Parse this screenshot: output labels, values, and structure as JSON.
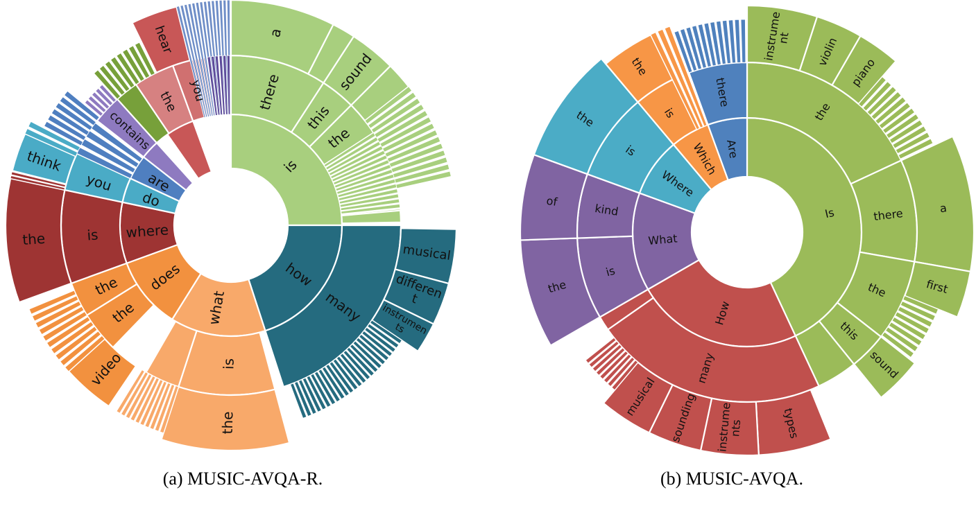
{
  "chart_data": [
    {
      "type": "sunburst",
      "caption": "(a) MUSIC-AVQA-R.",
      "first_words": [
        {
          "word": "is",
          "color": "#A8CF7E",
          "start": 0,
          "end": 90,
          "children": [
            {
              "word": "there",
              "start": 0,
              "end": 33,
              "children": [
                {
                  "word": "a",
                  "start": 0,
                  "end": 27
                }
              ]
            },
            {
              "word": "this",
              "start": 33,
              "end": 45,
              "children": [
                {
                  "word": "sound",
                  "start": 33,
                  "end": 45
                }
              ]
            },
            {
              "word": "the",
              "start": 45,
              "end": 57,
              "children": []
            }
          ]
        },
        {
          "word": "how",
          "color": "#256B7F",
          "start": 90,
          "end": 162,
          "children": [
            {
              "word": "many",
              "start": 90,
              "end": 162,
              "children": [
                {
                  "word": "musical",
                  "start": 93,
                  "end": 105
                },
                {
                  "word": "different",
                  "start": 105,
                  "end": 116
                },
                {
                  "word": "instruments",
                  "start": 116,
                  "end": 124
                }
              ]
            }
          ]
        },
        {
          "word": "what",
          "color": "#F8A96A",
          "start": 162,
          "end": 212,
          "children": [
            {
              "word": "is",
              "start": 165,
              "end": 198,
              "children": [
                {
                  "word": "the",
                  "start": 165,
                  "end": 198
                }
              ]
            }
          ]
        },
        {
          "word": "does",
          "color": "#F2913F",
          "start": 212,
          "end": 250,
          "children": [
            {
              "word": "the",
              "start": 224,
              "end": 238,
              "children": [
                {
                  "word": "video",
                  "start": 214,
                  "end": 228
                }
              ]
            },
            {
              "word": "the",
              "start": 238,
              "end": 250,
              "children": []
            }
          ]
        },
        {
          "word": "where",
          "color": "#9E3433",
          "start": 250,
          "end": 282,
          "children": [
            {
              "word": "is",
              "start": 250,
              "end": 282,
              "children": [
                {
                  "word": "the",
                  "start": 250,
                  "end": 282
                }
              ]
            }
          ]
        },
        {
          "word": "do",
          "color": "#4AABC6",
          "start": 282,
          "end": 295,
          "children": [
            {
              "word": "you",
              "start": 282,
              "end": 295,
              "children": [
                {
                  "word": "think",
                  "start": 283,
                  "end": 295
                }
              ]
            }
          ]
        },
        {
          "word": "are",
          "color": "#4F7FC0",
          "start": 295,
          "end": 308,
          "children": []
        },
        {
          "word": "contains",
          "color": "#8E7AC0",
          "start": 308,
          "end": 318,
          "children": []
        },
        {
          "word": "you",
          "color": "#C85757",
          "start": 325,
          "end": 340,
          "children": [
            {
              "word": "the",
              "start": 318,
              "end": 334,
              "children": []
            }
          ]
        },
        {
          "word": "hear",
          "color": "#C85757",
          "start": 330,
          "end": 345,
          "children": []
        }
      ]
    },
    {
      "type": "sunburst",
      "caption": "(b) MUSIC-AVQA.",
      "first_words": [
        {
          "word": "Is",
          "color": "#9BBB59",
          "start": 0,
          "end": 155,
          "children": [
            {
              "word": "the",
              "start": 0,
              "end": 65,
              "children": [
                {
                  "word": "instrument",
                  "start": 0,
                  "end": 18
                },
                {
                  "word": "violin",
                  "start": 18,
                  "end": 30
                },
                {
                  "word": "piano",
                  "start": 30,
                  "end": 41
                }
              ]
            },
            {
              "word": "there",
              "start": 65,
              "end": 100,
              "children": [
                {
                  "word": "a",
                  "start": 65,
                  "end": 100
                }
              ]
            },
            {
              "word": "the",
              "start": 100,
              "end": 128,
              "children": [
                {
                  "word": "first",
                  "start": 100,
                  "end": 112
                }
              ]
            },
            {
              "word": "this",
              "start": 128,
              "end": 141,
              "children": [
                {
                  "word": "sound",
                  "start": 128,
                  "end": 141
                }
              ]
            }
          ]
        },
        {
          "word": "How",
          "color": "#C0504D",
          "start": 155,
          "end": 240,
          "children": [
            {
              "word": "many",
              "start": 155,
              "end": 235,
              "children": [
                {
                  "word": "types",
                  "start": 158,
                  "end": 177
                },
                {
                  "word": "instruments",
                  "start": 177,
                  "end": 192
                },
                {
                  "word": "sounding",
                  "start": 192,
                  "end": 206
                },
                {
                  "word": "musical",
                  "start": 206,
                  "end": 220
                }
              ]
            }
          ]
        },
        {
          "word": "What",
          "color": "#8064A2",
          "start": 240,
          "end": 290,
          "children": [
            {
              "word": "is",
              "start": 240,
              "end": 268,
              "children": [
                {
                  "word": "the",
                  "start": 240,
                  "end": 268
                }
              ]
            },
            {
              "word": "kind",
              "start": 268,
              "end": 290,
              "children": [
                {
                  "word": "of",
                  "start": 268,
                  "end": 290
                }
              ]
            }
          ]
        },
        {
          "word": "Where",
          "color": "#4BACC6",
          "start": 290,
          "end": 320,
          "children": [
            {
              "word": "is",
              "start": 290,
              "end": 320,
              "children": [
                {
                  "word": "the",
                  "start": 290,
                  "end": 320
                }
              ]
            }
          ]
        },
        {
          "word": "Which",
          "color": "#F79646",
          "start": 320,
          "end": 340,
          "children": [
            {
              "word": "is",
              "start": 320,
              "end": 340,
              "children": [
                {
                  "word": "the",
                  "start": 320,
                  "end": 340
                }
              ]
            }
          ]
        },
        {
          "word": "Are",
          "color": "#4F81BD",
          "start": 340,
          "end": 360,
          "children": [
            {
              "word": "there",
              "start": 340,
              "end": 360,
              "children": []
            }
          ]
        }
      ]
    }
  ]
}
